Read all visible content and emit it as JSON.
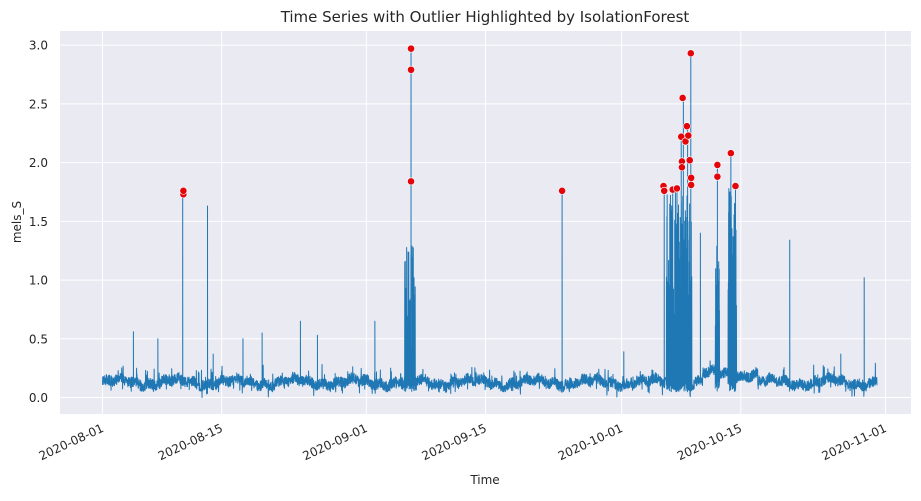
{
  "chart_data": {
    "type": "line",
    "title": "Time Series with Outlier Highlighted by IsolationForest",
    "xlabel": "Time",
    "ylabel": "mels_S",
    "xlim": [
      "2020-07-27",
      "2020-11-04"
    ],
    "ylim": [
      -0.14,
      3.12
    ],
    "x_ticks": [
      "2020-08-01",
      "2020-08-15",
      "2020-09-01",
      "2020-09-15",
      "2020-10-01",
      "2020-10-15",
      "2020-11-01"
    ],
    "y_ticks": [
      0.0,
      0.5,
      1.0,
      1.5,
      2.0,
      2.5,
      3.0
    ],
    "y_tick_labels": [
      "0.0",
      "0.5",
      "1.0",
      "1.5",
      "2.0",
      "2.5",
      "3.0"
    ],
    "grid": true,
    "style": "seaborn-darkgrid",
    "line_color": "#1f77b4",
    "outlier_color": "#e3050a",
    "start": "2020-08-01",
    "end": "2020-10-31",
    "spikes": [
      {
        "x": "2020-08-04 15:00",
        "y": 0.56
      },
      {
        "x": "2020-08-07 12:00",
        "y": 0.5
      },
      {
        "x": "2020-08-10 10:00",
        "y": 1.74
      },
      {
        "x": "2020-08-13 08:00",
        "y": 1.63
      },
      {
        "x": "2020-08-14 00:00",
        "y": 0.37
      },
      {
        "x": "2020-08-17 12:00",
        "y": 0.5
      },
      {
        "x": "2020-08-19 18:00",
        "y": 0.55
      },
      {
        "x": "2020-08-24 06:00",
        "y": 0.65
      },
      {
        "x": "2020-08-26 06:00",
        "y": 0.53
      },
      {
        "x": "2020-09-02 00:00",
        "y": 0.65
      },
      {
        "x": "2020-09-06 06:00",
        "y": 2.97
      },
      {
        "x": "2020-09-24 00:00",
        "y": 1.76
      },
      {
        "x": "2020-10-01 06:00",
        "y": 0.39
      },
      {
        "x": "2020-10-06 00:00",
        "y": 1.8
      },
      {
        "x": "2020-10-07 00:00",
        "y": 1.77
      },
      {
        "x": "2020-10-07 12:00",
        "y": 1.78
      },
      {
        "x": "2020-10-08 00:00",
        "y": 2.22
      },
      {
        "x": "2020-10-08 06:00",
        "y": 2.55
      },
      {
        "x": "2020-10-08 18:00",
        "y": 2.31
      },
      {
        "x": "2020-10-09 03:00",
        "y": 2.93
      },
      {
        "x": "2020-10-10 06:00",
        "y": 1.4
      },
      {
        "x": "2020-10-12 06:00",
        "y": 1.98
      },
      {
        "x": "2020-10-13 20:00",
        "y": 2.08
      },
      {
        "x": "2020-10-14 09:00",
        "y": 1.8
      },
      {
        "x": "2020-10-20 18:00",
        "y": 1.34
      },
      {
        "x": "2020-10-26 18:00",
        "y": 0.37
      },
      {
        "x": "2020-10-29 12:00",
        "y": 1.02
      }
    ],
    "outliers": [
      {
        "x": "2020-08-10 12:00",
        "y": 1.73
      },
      {
        "x": "2020-08-10 12:00",
        "y": 1.76
      },
      {
        "x": "2020-09-06 06:00",
        "y": 2.97
      },
      {
        "x": "2020-09-06 06:00",
        "y": 2.79
      },
      {
        "x": "2020-09-06 06:00",
        "y": 1.84
      },
      {
        "x": "2020-09-24 00:00",
        "y": 1.76
      },
      {
        "x": "2020-10-05 22:00",
        "y": 1.8
      },
      {
        "x": "2020-10-06 00:00",
        "y": 1.76
      },
      {
        "x": "2020-10-07 00:00",
        "y": 1.77
      },
      {
        "x": "2020-10-07 12:00",
        "y": 1.78
      },
      {
        "x": "2020-10-08 00:00",
        "y": 2.22
      },
      {
        "x": "2020-10-08 02:00",
        "y": 2.01
      },
      {
        "x": "2020-10-08 02:00",
        "y": 1.96
      },
      {
        "x": "2020-10-08 04:00",
        "y": 2.55
      },
      {
        "x": "2020-10-08 12:00",
        "y": 2.18
      },
      {
        "x": "2020-10-08 16:00",
        "y": 2.31
      },
      {
        "x": "2020-10-08 20:00",
        "y": 2.23
      },
      {
        "x": "2020-10-09 00:00",
        "y": 2.02
      },
      {
        "x": "2020-10-09 03:00",
        "y": 2.93
      },
      {
        "x": "2020-10-09 04:00",
        "y": 1.87
      },
      {
        "x": "2020-10-09 04:00",
        "y": 1.81
      },
      {
        "x": "2020-10-12 06:00",
        "y": 1.88
      },
      {
        "x": "2020-10-12 06:00",
        "y": 1.98
      },
      {
        "x": "2020-10-13 20:00",
        "y": 2.08
      },
      {
        "x": "2020-10-14 09:00",
        "y": 1.8
      }
    ],
    "dense_regions": [
      {
        "from": "2020-09-05 12:00",
        "to": "2020-09-06 18:00",
        "y_max": 1.0
      },
      {
        "from": "2020-10-06 06:00",
        "to": "2020-10-09 06:00",
        "y_max": 1.5
      },
      {
        "from": "2020-10-12 00:00",
        "to": "2020-10-12 12:00",
        "y_max": 1.2
      },
      {
        "from": "2020-10-13 12:00",
        "to": "2020-10-14 12:00",
        "y_max": 1.5
      }
    ]
  }
}
